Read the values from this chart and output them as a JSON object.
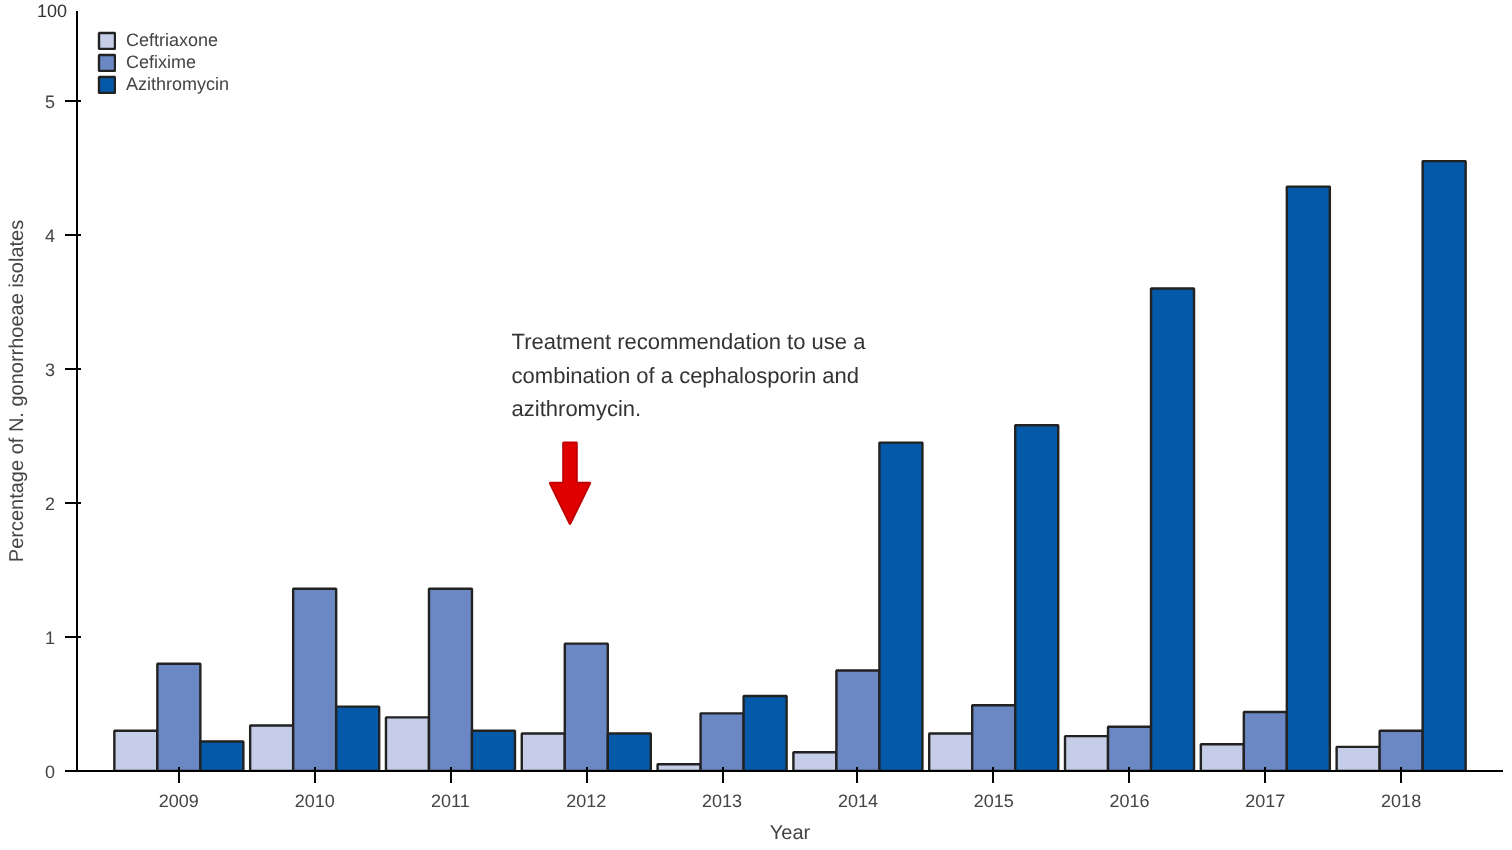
{
  "chart_data": {
    "type": "bar",
    "xlabel": "Year",
    "ylabel": "Percentage of N. gonorrhoeae isolates",
    "categories": [
      "2009",
      "2010",
      "2011",
      "2012",
      "2013",
      "2014",
      "2015",
      "2016",
      "2017",
      "2018"
    ],
    "series": [
      {
        "name": "Ceftriaxone",
        "color": "#c5cde8",
        "values": [
          0.3,
          0.34,
          0.4,
          0.28,
          0.05,
          0.14,
          0.28,
          0.26,
          0.2,
          0.18
        ]
      },
      {
        "name": "Cefixime",
        "color": "#6b88c4",
        "values": [
          0.8,
          1.36,
          1.36,
          0.95,
          0.43,
          0.75,
          0.49,
          0.33,
          0.44,
          0.3
        ]
      },
      {
        "name": "Azithromycin",
        "color": "#045aa8",
        "values": [
          0.22,
          0.48,
          0.3,
          0.28,
          0.56,
          2.45,
          2.58,
          3.6,
          4.36,
          4.55
        ]
      }
    ],
    "ylim": [
      0,
      5.67
    ],
    "yticks": [
      0,
      1,
      2,
      3,
      4,
      5
    ],
    "annotations": [
      "100",
      "Treatment recommendation to use a\ncombination of a cephalosporin and\nazithromycin."
    ],
    "legend": "top left",
    "grid": false
  }
}
